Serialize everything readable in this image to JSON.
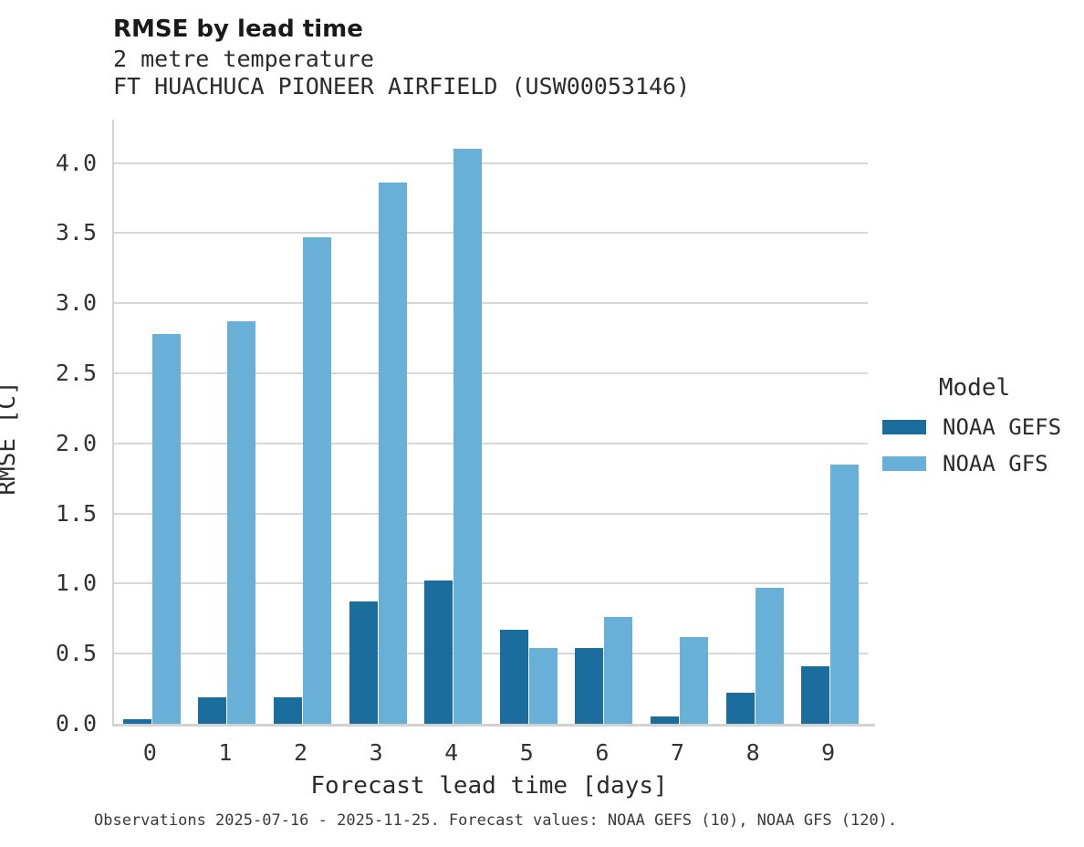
{
  "header": {
    "title": "RMSE by lead time",
    "subtitle_line1": "2 metre temperature",
    "subtitle_line2": "FT HUACHUCA PIONEER AIRFIELD (USW00053146)"
  },
  "caption": "Observations 2025-07-16 - 2025-11-25. Forecast values: NOAA GEFS (10), NOAA GFS (120).",
  "legend": {
    "title": "Model",
    "entries": [
      {
        "label": "NOAA GEFS",
        "color": "#1b6d9e"
      },
      {
        "label": "NOAA GFS",
        "color": "#69b0d9"
      }
    ]
  },
  "colors": {
    "gefs_bar": "#1b6d9e",
    "gfs_bar": "#69b0d9",
    "gridline": "#d7d7d7",
    "spine": "#d2d2d2"
  },
  "chart_data": {
    "type": "bar",
    "title": "RMSE by lead time",
    "categories": [
      "0",
      "1",
      "2",
      "3",
      "4",
      "5",
      "6",
      "7",
      "8",
      "9"
    ],
    "series": [
      {
        "name": "NOAA GEFS",
        "color": "#1b6d9e",
        "values": [
          0.03,
          0.19,
          0.19,
          0.87,
          1.02,
          0.67,
          0.54,
          0.05,
          0.22,
          0.41
        ]
      },
      {
        "name": "NOAA GFS",
        "color": "#69b0d9",
        "values": [
          2.78,
          2.87,
          3.47,
          3.86,
          4.1,
          0.54,
          0.76,
          0.62,
          0.97,
          1.85
        ]
      }
    ],
    "xlabel": "Forecast lead time [days]",
    "ylabel": "RMSE [C]",
    "ylim": [
      0,
      4.31
    ],
    "yticks": [
      0.0,
      0.5,
      1.0,
      1.5,
      2.0,
      2.5,
      3.0,
      3.5,
      4.0
    ],
    "grid": "horizontal",
    "legend_position": "right"
  }
}
